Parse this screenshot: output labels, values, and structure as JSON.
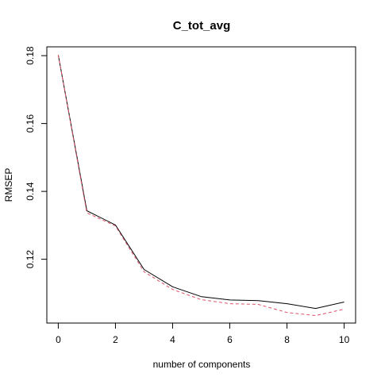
{
  "chart_data": {
    "type": "line",
    "title": "C_tot_avg",
    "xlabel": "number of components",
    "ylabel": "RMSEP",
    "x": [
      0,
      1,
      2,
      3,
      4,
      5,
      6,
      7,
      8,
      9,
      10
    ],
    "series": [
      {
        "line_style": "solid",
        "color": "#000000",
        "values": [
          0.1802,
          0.1343,
          0.1301,
          0.117,
          0.1119,
          0.109,
          0.108,
          0.1078,
          0.1069,
          0.1055,
          0.1074
        ]
      },
      {
        "line_style": "dashed",
        "color": "#DF536B",
        "values": [
          0.1802,
          0.1337,
          0.1298,
          0.1163,
          0.1111,
          0.1081,
          0.1069,
          0.1067,
          0.1043,
          0.1034,
          0.1053
        ]
      }
    ],
    "xlim": [
      -0.4,
      10.4
    ],
    "ylim": [
      0.1012,
      0.1826
    ],
    "x_ticks": [
      0,
      2,
      4,
      6,
      8,
      10
    ],
    "x_tick_labels": [
      "0",
      "2",
      "4",
      "6",
      "8",
      "10"
    ],
    "y_ticks": [
      0.12,
      0.14,
      0.16,
      0.18
    ],
    "y_tick_labels": [
      "0.12",
      "0.14",
      "0.16",
      "0.18"
    ],
    "grid": false,
    "legend": "none"
  }
}
